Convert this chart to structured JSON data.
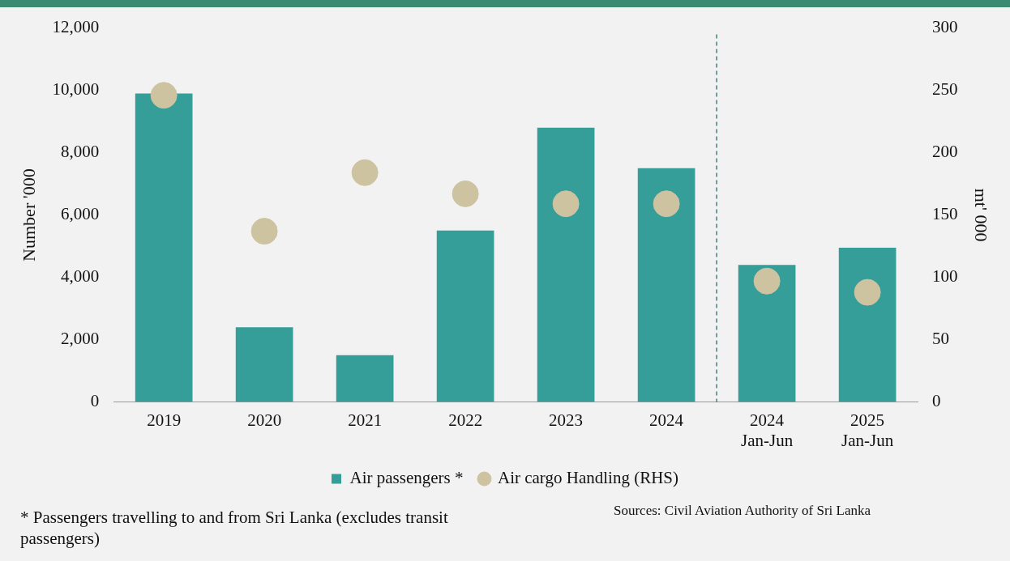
{
  "chart_data": {
    "type": "bar",
    "ylabel": "Number '000",
    "y2label": "mt' 000",
    "categories": [
      "2019",
      "2020",
      "2021",
      "2022",
      "2023",
      "2024",
      "2024 Jan-Jun",
      "2025 Jan-Jun"
    ],
    "series": [
      {
        "name": "Air passengers *",
        "color": "#369e99",
        "values": [
          9900,
          2400,
          1500,
          5500,
          8800,
          7500,
          4400,
          4950
        ]
      },
      {
        "name": "Air cargo Handling (RHS)",
        "color": "#cdc3a0",
        "type": "scatter",
        "axis": "y2",
        "marker": "circle",
        "values": [
          246,
          137,
          184,
          167,
          159,
          159,
          97,
          88
        ]
      }
    ],
    "ylim": [
      0,
      12000
    ],
    "yticks": [
      0,
      {
        "value": 2000,
        "label": "2,000"
      },
      {
        "value": 4000,
        "label": "4,000"
      },
      {
        "value": 6000,
        "label": "6,000"
      },
      {
        "value": 8000,
        "label": "8,000"
      },
      {
        "value": 10000,
        "label": "10,000"
      },
      {
        "value": 12000,
        "label": "12,000"
      }
    ],
    "y2lim": [
      0,
      300
    ],
    "y2ticks": [
      0,
      50,
      100,
      150,
      200,
      250,
      300
    ],
    "ref_lines": [
      {
        "axis": "x",
        "value": "2024 Jan-Jun",
        "color": "#2e6b68",
        "line_style": "dashed"
      }
    ],
    "grid": false,
    "legend": "bottom",
    "annotations": [
      "* Passengers travelling to and from Sri Lanka (excludes transit passengers)",
      "Sources: Civil Aviation Authority of Sri Lanka"
    ]
  }
}
